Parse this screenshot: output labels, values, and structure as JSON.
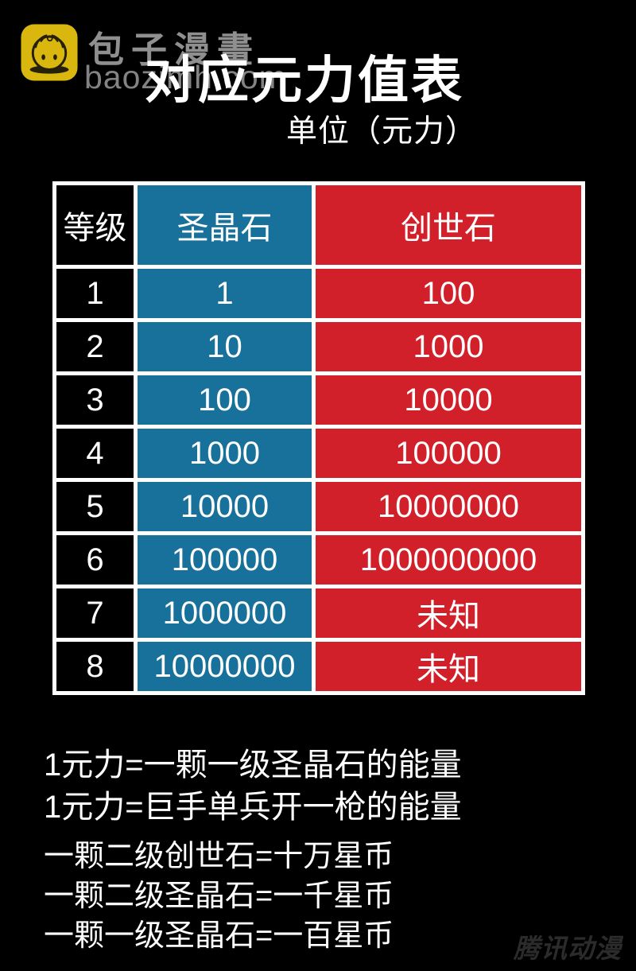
{
  "brand": {
    "name": "包子漫畫",
    "domain": "baozimh.com"
  },
  "chart_data": {
    "type": "table",
    "title": "对应元力值表",
    "subtitle": "单位（元力）",
    "columns": [
      "等级",
      "圣晶石",
      "创世石"
    ],
    "rows": [
      [
        "1",
        "1",
        "100"
      ],
      [
        "2",
        "10",
        "1000"
      ],
      [
        "3",
        "100",
        "10000"
      ],
      [
        "4",
        "1000",
        "100000"
      ],
      [
        "5",
        "10000",
        "10000000"
      ],
      [
        "6",
        "100000",
        "1000000000"
      ],
      [
        "7",
        "1000000",
        "未知"
      ],
      [
        "8",
        "10000000",
        "未知"
      ]
    ]
  },
  "notes": [
    "1元力=一颗一级圣晶石的能量",
    "1元力=巨手单兵开一枪的能量",
    "一颗二级创世石=十万星币",
    "一颗二级圣晶石=一千星币",
    "一颗一级圣晶石=一百星币"
  ],
  "watermark": "腾讯动漫",
  "colors": {
    "page_bg": "#000000",
    "table_blue": "#17719b",
    "table_red": "#d2202a",
    "cell_black": "#000000",
    "border_white": "#ffffff",
    "logo_yellow": "#d9b70e",
    "logo_dark": "#262008",
    "brand_gray": "#8f8f8f",
    "watermark_gray": "#2b2b2b"
  }
}
